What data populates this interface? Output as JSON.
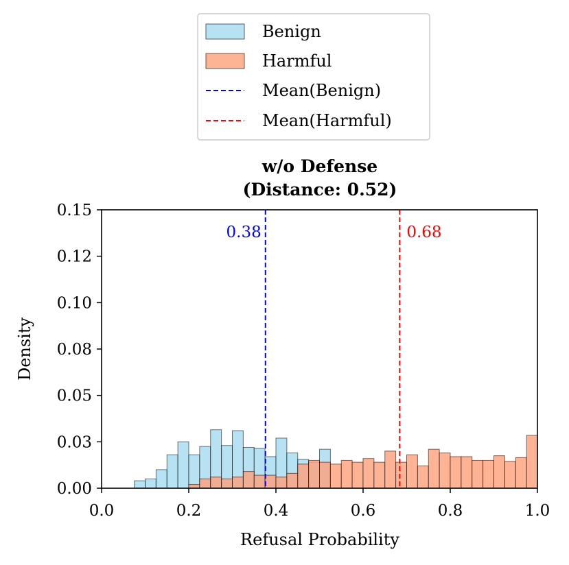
{
  "chart_data": {
    "type": "histogram",
    "title_line1": "w/o Defense",
    "title_line2": "(Distance: 0.52)",
    "xlabel": "Refusal Probability",
    "ylabel": "Density",
    "xlim": [
      0.0,
      1.0
    ],
    "ylim": [
      0.0,
      0.15
    ],
    "x_ticks": [
      "0.0",
      "0.2",
      "0.4",
      "0.6",
      "0.8",
      "1.0"
    ],
    "y_ticks": [
      "0.00",
      "0.03",
      "0.05",
      "0.08",
      "0.10",
      "0.12",
      "0.15"
    ],
    "y_tick_values": [
      0.0,
      0.025,
      0.05,
      0.075,
      0.1,
      0.125,
      0.15
    ],
    "bin_start": 0.0,
    "bin_width": 0.025,
    "series": [
      {
        "name": "Benign",
        "color": "#87ceeb",
        "values": [
          0,
          0,
          0,
          0.004,
          0.005,
          0.01,
          0.018,
          0.025,
          0.018,
          0.0225,
          0.0315,
          0.023,
          0.031,
          0.022,
          0.0215,
          0.017,
          0.027,
          0.019,
          0.0155,
          0.014,
          0.021,
          0,
          0,
          0,
          0,
          0,
          0,
          0,
          0,
          0,
          0,
          0,
          0,
          0,
          0,
          0,
          0,
          0,
          0,
          0
        ]
      },
      {
        "name": "Harmful",
        "color": "#ffa07a",
        "values": [
          0,
          0,
          0,
          0,
          0,
          0,
          0,
          0,
          0.002,
          0.005,
          0.006,
          0.005,
          0.006,
          0.009,
          0.007,
          0.007,
          0.006,
          0.008,
          0.013,
          0.015,
          0.014,
          0.013,
          0.015,
          0.014,
          0.016,
          0.014,
          0.02,
          0.014,
          0.018,
          0.012,
          0.021,
          0.019,
          0.017,
          0.017,
          0.015,
          0.015,
          0.0175,
          0.0145,
          0.0165,
          0.0285
        ]
      }
    ],
    "mean_lines": [
      {
        "name": "Mean(Benign)",
        "x": 0.376,
        "label": "0.38",
        "color": "#0000ff"
      },
      {
        "name": "Mean(Harmful)",
        "x": 0.684,
        "label": "0.68",
        "color": "#ff0000"
      }
    ],
    "legend": [
      "Benign",
      "Harmful",
      "Mean(Benign)",
      "Mean(Harmful)"
    ],
    "legend_position": "top-center, above plot"
  }
}
